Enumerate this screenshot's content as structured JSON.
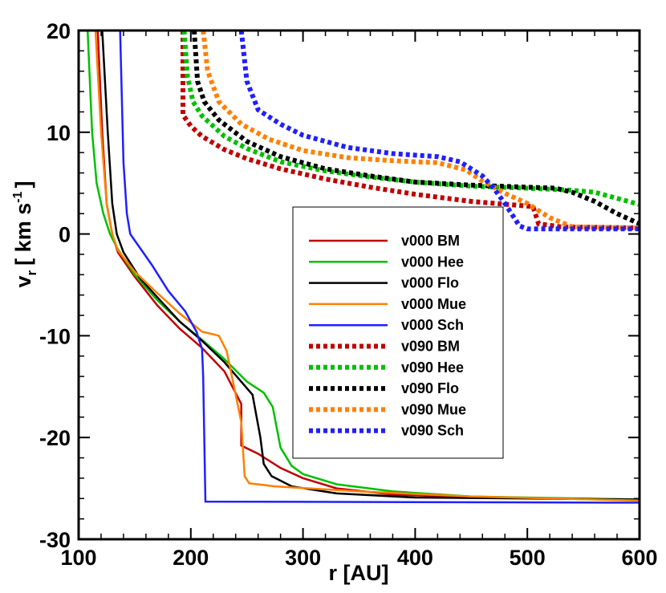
{
  "chart_data": {
    "type": "line",
    "xlabel": "r [AU]",
    "ylabel": "v",
    "ylabel_sub": "r",
    "ylabel_unit": "[ km s",
    "ylabel_sup": "-1",
    "ylabel_close": "]",
    "xlim": [
      100,
      600
    ],
    "ylim": [
      -30,
      20
    ],
    "x_ticks": [
      "100",
      "200",
      "300",
      "400",
      "500",
      "600"
    ],
    "y_ticks": [
      "-30",
      "-20",
      "-10",
      "0",
      "10",
      "20"
    ],
    "grid": false,
    "legend_position": "center",
    "series": [
      {
        "name": "v000 BM",
        "color": "#c00000",
        "dash": "solid",
        "points": [
          [
            117,
            20
          ],
          [
            121,
            10
          ],
          [
            125,
            3
          ],
          [
            130,
            0
          ],
          [
            135,
            -1.8
          ],
          [
            150,
            -4.2
          ],
          [
            170,
            -7
          ],
          [
            190,
            -9.3
          ],
          [
            210,
            -11.2
          ],
          [
            230,
            -13.5
          ],
          [
            245,
            -16.7
          ],
          [
            245,
            -20.8
          ],
          [
            260,
            -21.6
          ],
          [
            280,
            -23
          ],
          [
            300,
            -24
          ],
          [
            330,
            -25
          ],
          [
            380,
            -25.6
          ],
          [
            450,
            -25.9
          ],
          [
            600,
            -26.1
          ]
        ]
      },
      {
        "name": "v000 Hee",
        "color": "#00c000",
        "dash": "solid",
        "points": [
          [
            108,
            20
          ],
          [
            112,
            10
          ],
          [
            116,
            5
          ],
          [
            122,
            2
          ],
          [
            128,
            0
          ],
          [
            135,
            -1.5
          ],
          [
            150,
            -4
          ],
          [
            170,
            -6.5
          ],
          [
            190,
            -8.6
          ],
          [
            210,
            -10.4
          ],
          [
            230,
            -12.3
          ],
          [
            250,
            -14.5
          ],
          [
            265,
            -15.6
          ],
          [
            273,
            -17
          ],
          [
            280,
            -21
          ],
          [
            290,
            -22.8
          ],
          [
            300,
            -23.6
          ],
          [
            330,
            -24.6
          ],
          [
            380,
            -25.3
          ],
          [
            450,
            -25.8
          ],
          [
            600,
            -26.1
          ]
        ]
      },
      {
        "name": "v000 Flo",
        "color": "#000000",
        "dash": "solid",
        "points": [
          [
            121,
            20
          ],
          [
            126,
            10
          ],
          [
            130,
            3
          ],
          [
            134,
            0
          ],
          [
            140,
            -1.8
          ],
          [
            155,
            -4.4
          ],
          [
            170,
            -6.2
          ],
          [
            190,
            -8.6
          ],
          [
            210,
            -10.5
          ],
          [
            230,
            -12.6
          ],
          [
            255,
            -15.8
          ],
          [
            262,
            -20
          ],
          [
            265,
            -22.6
          ],
          [
            272,
            -23.8
          ],
          [
            290,
            -24.8
          ],
          [
            330,
            -25.5
          ],
          [
            400,
            -25.9
          ],
          [
            600,
            -26.1
          ]
        ]
      },
      {
        "name": "v000 Mue",
        "color": "#ff8000",
        "dash": "solid",
        "points": [
          [
            115,
            20
          ],
          [
            120,
            10
          ],
          [
            125,
            3
          ],
          [
            130,
            0
          ],
          [
            135,
            -1.6
          ],
          [
            150,
            -3.7
          ],
          [
            170,
            -5.8
          ],
          [
            190,
            -7.8
          ],
          [
            210,
            -9.6
          ],
          [
            225,
            -10
          ],
          [
            232,
            -11.5
          ],
          [
            240,
            -15.8
          ],
          [
            245,
            -18.5
          ],
          [
            248,
            -23.8
          ],
          [
            252,
            -24.5
          ],
          [
            275,
            -24.8
          ],
          [
            350,
            -25.3
          ],
          [
            450,
            -25.8
          ],
          [
            600,
            -26.2
          ]
        ]
      },
      {
        "name": "v000 Sch",
        "color": "#2020ff",
        "dash": "solid",
        "points": [
          [
            137,
            20
          ],
          [
            140,
            7
          ],
          [
            143,
            2
          ],
          [
            146,
            0
          ],
          [
            165,
            -3
          ],
          [
            180,
            -5.6
          ],
          [
            195,
            -7.6
          ],
          [
            205,
            -9.6
          ],
          [
            210,
            -11.3
          ],
          [
            211,
            -14
          ],
          [
            213,
            -26.3
          ],
          [
            600,
            -26.4
          ]
        ]
      },
      {
        "name": "v090 BM",
        "color": "#c00000",
        "dash": "dotted",
        "points": [
          [
            193,
            20
          ],
          [
            193,
            11.7
          ],
          [
            200,
            10.6
          ],
          [
            210,
            9.6
          ],
          [
            230,
            8.3
          ],
          [
            250,
            7.4
          ],
          [
            280,
            6.4
          ],
          [
            320,
            5.4
          ],
          [
            360,
            4.6
          ],
          [
            400,
            3.9
          ],
          [
            450,
            3.2
          ],
          [
            505,
            2.7
          ],
          [
            510,
            1
          ],
          [
            530,
            0.7
          ],
          [
            600,
            0.6
          ]
        ]
      },
      {
        "name": "v090 Hee",
        "color": "#00c000",
        "dash": "dotted",
        "points": [
          [
            194,
            20
          ],
          [
            197,
            15.5
          ],
          [
            202,
            13
          ],
          [
            210,
            11.6
          ],
          [
            230,
            9.6
          ],
          [
            250,
            8.4
          ],
          [
            280,
            7.1
          ],
          [
            320,
            6.2
          ],
          [
            360,
            5.6
          ],
          [
            400,
            5.1
          ],
          [
            450,
            4.7
          ],
          [
            500,
            4.5
          ],
          [
            540,
            4.3
          ],
          [
            560,
            4.1
          ],
          [
            600,
            2.9
          ]
        ]
      },
      {
        "name": "v090 Flo",
        "color": "#000000",
        "dash": "dotted",
        "points": [
          [
            203,
            20
          ],
          [
            206,
            15
          ],
          [
            212,
            13
          ],
          [
            225,
            11.2
          ],
          [
            250,
            9.1
          ],
          [
            280,
            7.6
          ],
          [
            320,
            6.4
          ],
          [
            360,
            5.7
          ],
          [
            400,
            5.1
          ],
          [
            450,
            4.8
          ],
          [
            500,
            4.6
          ],
          [
            525,
            4.5
          ],
          [
            540,
            4.1
          ],
          [
            560,
            3.2
          ],
          [
            580,
            2
          ],
          [
            600,
            1
          ]
        ]
      },
      {
        "name": "v090 Mue",
        "color": "#ff8000",
        "dash": "dotted",
        "points": [
          [
            211,
            20
          ],
          [
            215,
            16
          ],
          [
            225,
            13
          ],
          [
            245,
            10.8
          ],
          [
            270,
            9.3
          ],
          [
            300,
            8.2
          ],
          [
            340,
            7.5
          ],
          [
            380,
            7.2
          ],
          [
            420,
            7
          ],
          [
            445,
            6.3
          ],
          [
            460,
            5.2
          ],
          [
            480,
            4
          ],
          [
            500,
            3
          ],
          [
            520,
            1.6
          ],
          [
            540,
            0.7
          ],
          [
            600,
            0.6
          ]
        ]
      },
      {
        "name": "v090 Sch",
        "color": "#2020ff",
        "dash": "dotted",
        "points": [
          [
            245,
            20
          ],
          [
            250,
            15
          ],
          [
            260,
            12.2
          ],
          [
            280,
            10.8
          ],
          [
            300,
            9.7
          ],
          [
            340,
            8.5
          ],
          [
            380,
            7.9
          ],
          [
            420,
            7.6
          ],
          [
            440,
            7.1
          ],
          [
            460,
            5.7
          ],
          [
            470,
            4.5
          ],
          [
            480,
            3
          ],
          [
            493,
            0.8
          ],
          [
            500,
            0.5
          ],
          [
            600,
            0.5
          ]
        ]
      }
    ]
  }
}
